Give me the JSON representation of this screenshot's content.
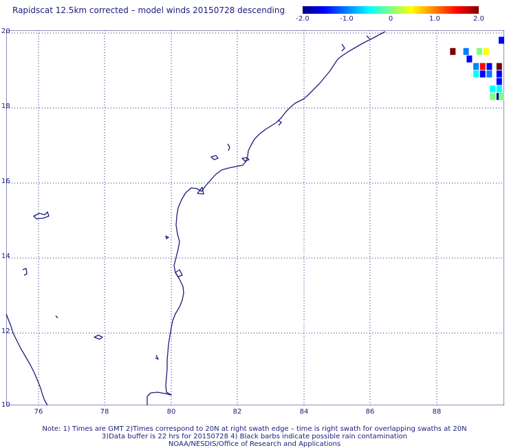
{
  "title": "Rapidscat 12.5km corrected – model winds 20150728 descending",
  "colorbar": {
    "ticks": [
      "-2.0",
      "-1.0",
      "0",
      "1.0",
      "2.0"
    ],
    "colors": [
      "#000080",
      "#0000ff",
      "#0080ff",
      "#00ffff",
      "#80ff80",
      "#ffff00",
      "#ff8000",
      "#ff0000",
      "#800000"
    ]
  },
  "map": {
    "lat_labels": [
      "20",
      "18",
      "16",
      "14",
      "12",
      "10"
    ],
    "lon_labels": [
      "76",
      "78",
      "80",
      "82",
      "84",
      "86",
      "88"
    ],
    "lon_range": [
      75,
      90
    ],
    "lat_range": [
      10,
      20
    ],
    "coastline_color": "#1a1a7a",
    "grid": "dotted"
  },
  "wind_cells": [
    {
      "lon": 89.9,
      "lat": 19.9,
      "color": "#0000ff"
    },
    {
      "lon": 88.4,
      "lat": 19.6,
      "color": "#800000"
    },
    {
      "lon": 88.8,
      "lat": 19.6,
      "color": "#0080ff"
    },
    {
      "lon": 89.2,
      "lat": 19.6,
      "color": "#80ff80"
    },
    {
      "lon": 89.4,
      "lat": 19.6,
      "color": "#ffff00"
    },
    {
      "lon": 88.9,
      "lat": 19.4,
      "color": "#0000ff"
    },
    {
      "lon": 89.1,
      "lat": 19.2,
      "color": "#0080ff"
    },
    {
      "lon": 89.3,
      "lat": 19.2,
      "color": "#ff0000"
    },
    {
      "lon": 89.5,
      "lat": 19.2,
      "color": "#0000ff"
    },
    {
      "lon": 89.8,
      "lat": 19.2,
      "color": "#800000"
    },
    {
      "lon": 89.1,
      "lat": 19.0,
      "color": "#00ffff"
    },
    {
      "lon": 89.3,
      "lat": 19.0,
      "color": "#0000ff"
    },
    {
      "lon": 89.5,
      "lat": 19.0,
      "color": "#0080ff"
    },
    {
      "lon": 89.8,
      "lat": 19.0,
      "color": "#0000ff"
    },
    {
      "lon": 89.8,
      "lat": 18.8,
      "color": "#0000ff"
    },
    {
      "lon": 89.6,
      "lat": 18.6,
      "color": "#00ffff"
    },
    {
      "lon": 89.8,
      "lat": 18.6,
      "color": "#00ffff"
    },
    {
      "lon": 89.6,
      "lat": 18.4,
      "color": "#80ff80"
    },
    {
      "lon": 89.8,
      "lat": 18.4,
      "color": "#000080"
    },
    {
      "lon": 89.95,
      "lat": 18.4,
      "color": "#80ff80"
    }
  ],
  "notes": {
    "line1": "Note: 1) Times are GMT 2)Times correspond to 20N at right swath edge – time is right swath for overlapping swaths at 20N",
    "line2": "3)Data buffer is 22 hrs for 20150728 4) Black barbs indicate possible rain contamination",
    "line3": "NOAA/NESDIS/Office of Research and Applications"
  }
}
